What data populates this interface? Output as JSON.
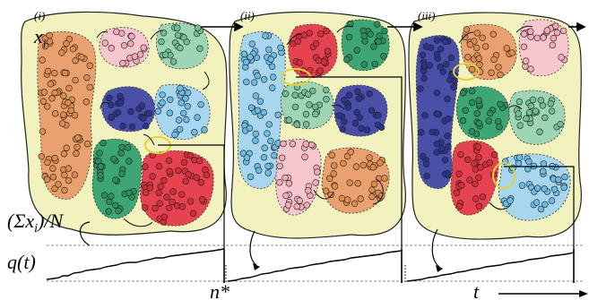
{
  "panels": [
    {
      "label": "(i)"
    },
    {
      "label": "(ii)"
    },
    {
      "label": "(iii)"
    }
  ],
  "labels": {
    "xi": "x",
    "xi_sub": "i",
    "sum_lhs": "(Σx",
    "sum_sub": "i",
    "sum_rhs": ")/N",
    "q": "q(t)",
    "nstar": "n*",
    "t": "t",
    "ellipsis": "···"
  },
  "colors": {
    "blob_fill": "#f2f2bf",
    "orange": "#e8a16f",
    "pink": "#f6c7cf",
    "teal": "#9fd4b4",
    "navy": "#4a4fa8",
    "sky": "#a9d6ef",
    "green": "#3ea574",
    "red": "#e4434f",
    "highlight": "#ffff66"
  }
}
